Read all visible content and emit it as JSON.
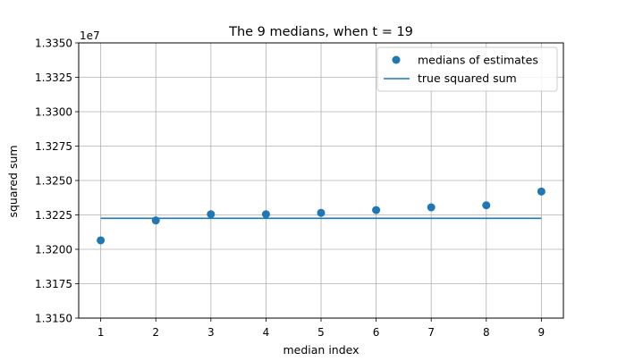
{
  "chart_data": {
    "type": "scatter",
    "title": "The 9 medians, when t = 19",
    "xlabel": "median index",
    "ylabel": "squared sum",
    "y_offset_label": "1e7",
    "xlim": [
      0.6,
      9.4
    ],
    "ylim": [
      13150000,
      13350000
    ],
    "x_ticks": [
      1,
      2,
      3,
      4,
      5,
      6,
      7,
      8,
      9
    ],
    "x_tick_labels": [
      "1",
      "2",
      "3",
      "4",
      "5",
      "6",
      "7",
      "8",
      "9"
    ],
    "y_ticks": [
      13150000,
      13175000,
      13200000,
      13225000,
      13250000,
      13275000,
      13300000,
      13325000,
      13350000
    ],
    "y_tick_labels": [
      "1.3150",
      "1.3175",
      "1.3200",
      "1.3225",
      "1.3250",
      "1.3275",
      "1.3300",
      "1.3325",
      "1.3350"
    ],
    "grid": true,
    "legend_position": "top-right",
    "series": [
      {
        "name": "medians of estimates",
        "kind": "scatter",
        "color": "#1f77b4",
        "x": [
          1,
          2,
          3,
          4,
          5,
          6,
          7,
          8,
          9
        ],
        "y": [
          13206500,
          13221000,
          13225500,
          13225500,
          13226500,
          13228500,
          13230500,
          13232000,
          13242000
        ]
      },
      {
        "name": "true squared sum",
        "kind": "line",
        "color": "#1f77b4",
        "x": [
          1,
          9
        ],
        "y": [
          13222500,
          13222500
        ]
      }
    ]
  }
}
